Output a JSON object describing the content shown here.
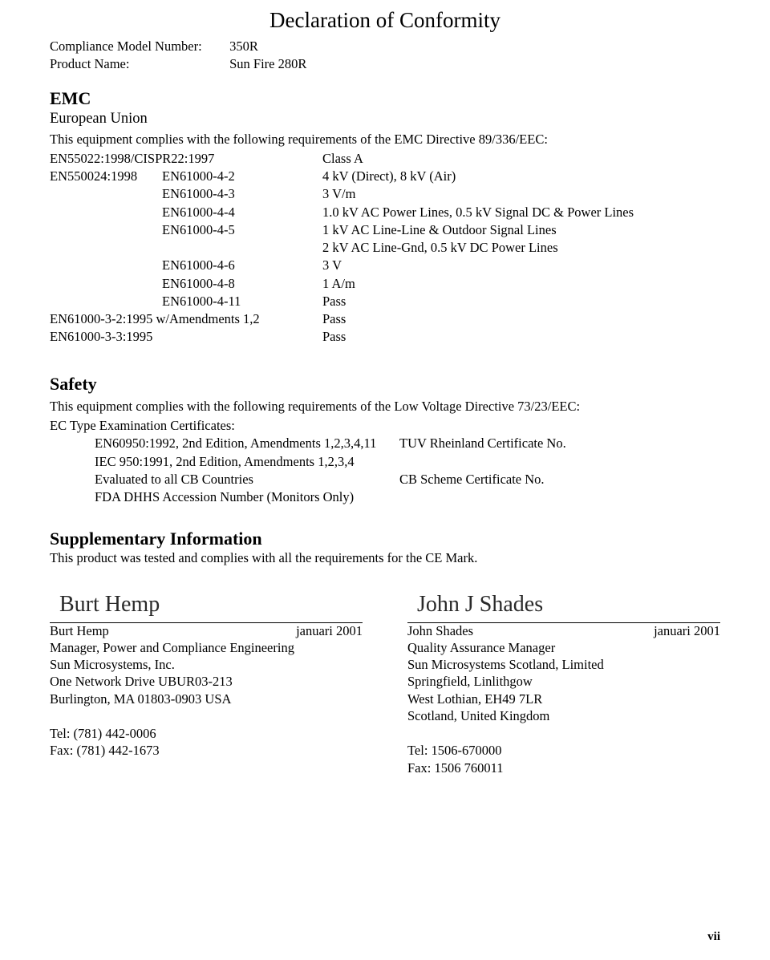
{
  "title": "Declaration of Conformity",
  "header": {
    "rows": [
      {
        "label": "Compliance Model Number:",
        "value": "350R"
      },
      {
        "label": "Product Name:",
        "value": "Sun Fire 280R"
      }
    ]
  },
  "emc": {
    "heading": "EMC",
    "subheading": "European Union",
    "intro": "This equipment complies with the following requirements of the EMC Directive 89/336/EEC:",
    "rows": [
      {
        "a": "EN55022:1998/CISPR22:1997",
        "b": "",
        "c": "Class A"
      },
      {
        "a": "EN550024:1998",
        "b": "EN61000-4-2",
        "c": "4 kV (Direct), 8 kV (Air)"
      },
      {
        "a": "",
        "b": "EN61000-4-3",
        "c": "3 V/m"
      },
      {
        "a": "",
        "b": "EN61000-4-4",
        "c": "1.0 kV AC Power Lines, 0.5 kV Signal DC & Power Lines"
      },
      {
        "a": "",
        "b": "EN61000-4-5",
        "c": "1 kV AC Line-Line & Outdoor Signal Lines"
      },
      {
        "a": "",
        "b": "",
        "c": "2 kV AC Line-Gnd, 0.5 kV DC Power Lines"
      },
      {
        "a": "",
        "b": "EN61000-4-6",
        "c": "3 V"
      },
      {
        "a": "",
        "b": "EN61000-4-8",
        "c": "1 A/m"
      },
      {
        "a": "",
        "b": "EN61000-4-11",
        "c": "Pass"
      },
      {
        "a": "EN61000-3-2:1995 w/Amendments 1,2",
        "b": "",
        "c": "Pass"
      },
      {
        "a": "EN61000-3-3:1995",
        "b": "",
        "c": "Pass"
      }
    ]
  },
  "safety": {
    "heading": "Safety",
    "intro": "This equipment complies with the following requirements of the Low Voltage Directive 73/23/EEC:",
    "cert_label": "EC Type Examination Certificates:",
    "rows": [
      {
        "left": "EN60950:1992, 2nd Edition, Amendments 1,2,3,4,11",
        "right": "TUV Rheinland Certificate No."
      },
      {
        "left": "IEC 950:1991, 2nd Edition, Amendments 1,2,3,4",
        "right": ""
      },
      {
        "left": "Evaluated to all CB Countries",
        "right": "CB Scheme Certificate No."
      },
      {
        "left": "FDA DHHS Accession Number (Monitors Only)",
        "right": ""
      }
    ]
  },
  "supp": {
    "heading": "Supplementary Information",
    "text": "This product was tested and complies with all the requirements for the CE Mark."
  },
  "signatures": {
    "left": {
      "script": "Burt Hemp",
      "name": "Burt Hemp",
      "date": "januari 2001",
      "lines": [
        "Manager, Power  and Compliance  Engineering",
        "Sun Microsystems, Inc.",
        "One Network Drive UBUR03-213",
        "Burlington, MA 01803-0903 USA",
        "",
        "Tel: (781) 442-0006",
        "Fax: (781) 442-1673"
      ]
    },
    "right": {
      "script": "John J Shades",
      "name": "John Shades",
      "date": "januari 2001",
      "lines": [
        "Quality Assurance Manager",
        "Sun Microsystems Scotland, Limited",
        "Springfield, Linlithgow",
        "West Lothian, EH49 7LR",
        "Scotland, United Kingdom",
        "",
        "Tel: 1506-670000",
        "Fax: 1506 760011"
      ]
    }
  },
  "page_number": "vii"
}
